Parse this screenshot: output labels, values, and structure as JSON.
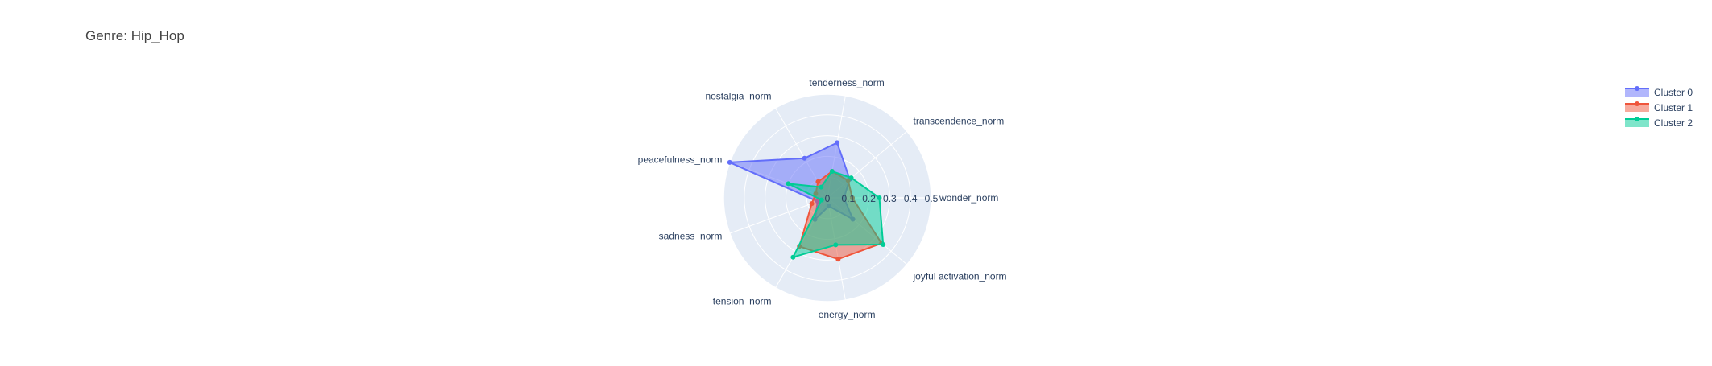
{
  "chart_data": {
    "type": "radar",
    "title": "Genre: Hip_Hop",
    "axes": [
      "wonder_norm",
      "transcendence_norm",
      "tenderness_norm",
      "nostalgia_norm",
      "peacefulness_norm",
      "sadness_norm",
      "tension_norm",
      "energy_norm",
      "joyful activation_norm"
    ],
    "radial_range": [
      0,
      0.5
    ],
    "radial_ticks": [
      "0",
      "0.1",
      "0.2",
      "0.3",
      "0.4",
      "0.5"
    ],
    "legend_position": "top-right",
    "series": [
      {
        "name": "Cluster 0",
        "color": "#636efa",
        "values": [
          0.08,
          0.14,
          0.27,
          0.22,
          0.5,
          0.05,
          0.12,
          0.04,
          0.16
        ]
      },
      {
        "name": "Cluster 1",
        "color": "#ef553b",
        "values": [
          0.12,
          0.13,
          0.13,
          0.09,
          0.06,
          0.08,
          0.27,
          0.3,
          0.34
        ]
      },
      {
        "name": "Cluster 2",
        "color": "#00cc96",
        "values": [
          0.25,
          0.15,
          0.13,
          0.06,
          0.2,
          0.03,
          0.33,
          0.23,
          0.35
        ]
      }
    ]
  }
}
